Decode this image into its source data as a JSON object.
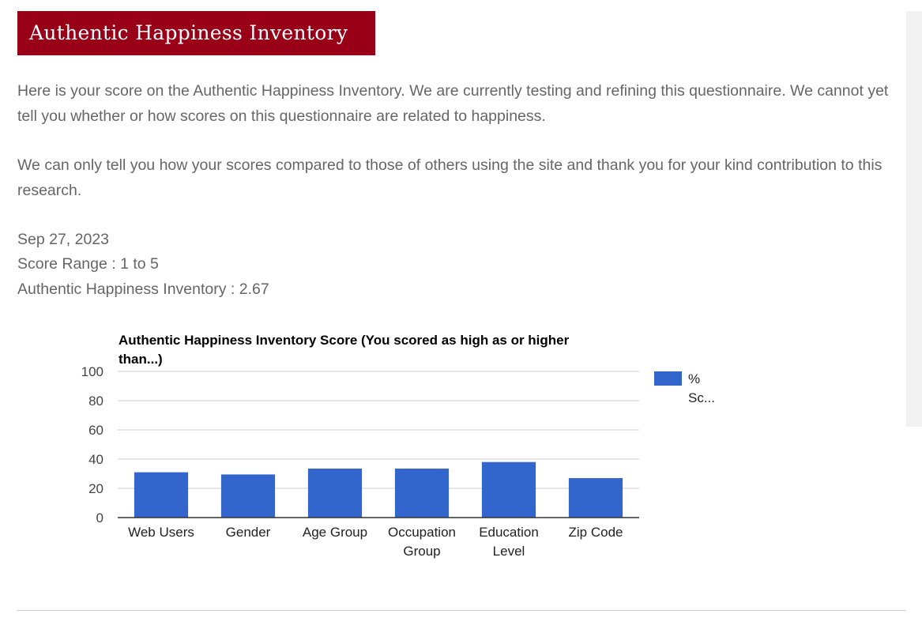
{
  "header": {
    "title": "Authentic Happiness Inventory"
  },
  "intro": {
    "paragraph1": "Here is your score on the Authentic Happiness Inventory. We are currently testing and refining this questionnaire. We cannot yet tell you whether or how scores on this questionnaire are related to happiness.",
    "paragraph2": "We can only tell you how your scores compared to those of others using the site and thank you for your kind contribution to this research."
  },
  "result": {
    "date": "Sep 27, 2023",
    "score_range": "Score Range : 1 to 5",
    "score_line": "Authentic Happiness Inventory : 2.67"
  },
  "chart_data": {
    "type": "bar",
    "title": "Authentic Happiness Inventory Score (You scored as high as or higher than...)",
    "title_lines": [
      "Authentic Happiness Inventory Score (You scored as high as or higher",
      "than...)"
    ],
    "categories": [
      [
        "Web Users"
      ],
      [
        "Gender"
      ],
      [
        "Age Group"
      ],
      [
        "Occupation",
        "Group"
      ],
      [
        "Education",
        "Level"
      ],
      [
        "Zip Code"
      ]
    ],
    "series": [
      {
        "name": "% Sc...",
        "legend_lines": [
          "%",
          "Sc..."
        ],
        "color": "#3366cc",
        "values": [
          31,
          29.5,
          33.5,
          33.5,
          38,
          27
        ]
      }
    ],
    "ylim": [
      0,
      100
    ],
    "yticks": [
      0,
      20,
      40,
      60,
      80,
      100
    ],
    "grid": true,
    "legend_position": "right",
    "xlabel": "",
    "ylabel": ""
  }
}
